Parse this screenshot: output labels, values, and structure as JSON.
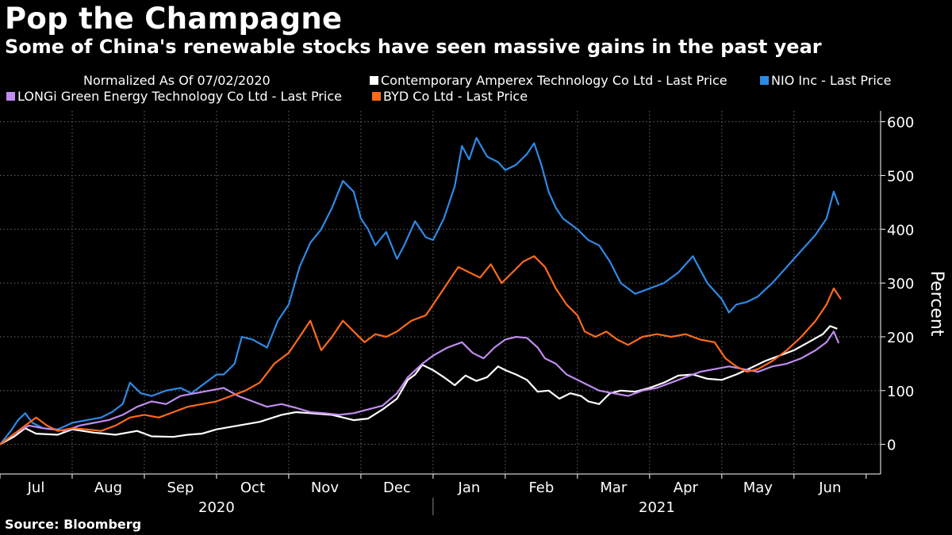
{
  "title": "Pop the Champagne",
  "subtitle": "Some of China's renewable stocks have seen massive gains in the past year",
  "source": "Source: Bloomberg",
  "chart_data": {
    "type": "line",
    "legend_note": "Normalized As Of 07/02/2020",
    "ylabel": "Percent",
    "ylim": [
      -55,
      620
    ],
    "yticks": [
      0,
      100,
      200,
      300,
      400,
      500,
      600
    ],
    "grid": true,
    "months": [
      "Jul",
      "Aug",
      "Sep",
      "Oct",
      "Nov",
      "Dec",
      "Jan",
      "Feb",
      "Mar",
      "Apr",
      "May",
      "Jun"
    ],
    "years": [
      "2020",
      "2021"
    ],
    "x_unit": "months since 07/02/2020",
    "series": [
      {
        "name": "Contemporary Amperex Technology Co Ltd - Last Price",
        "color": "#ffffff",
        "points": [
          [
            0,
            0
          ],
          [
            0.2,
            15
          ],
          [
            0.35,
            30
          ],
          [
            0.5,
            20
          ],
          [
            0.8,
            18
          ],
          [
            1.0,
            28
          ],
          [
            1.3,
            22
          ],
          [
            1.6,
            18
          ],
          [
            1.9,
            25
          ],
          [
            2.1,
            15
          ],
          [
            2.4,
            14
          ],
          [
            2.6,
            18
          ],
          [
            2.8,
            20
          ],
          [
            3.0,
            28
          ],
          [
            3.3,
            35
          ],
          [
            3.6,
            42
          ],
          [
            3.9,
            55
          ],
          [
            4.1,
            60
          ],
          [
            4.3,
            58
          ],
          [
            4.6,
            55
          ],
          [
            4.9,
            45
          ],
          [
            5.1,
            48
          ],
          [
            5.3,
            65
          ],
          [
            5.5,
            85
          ],
          [
            5.65,
            120
          ],
          [
            5.75,
            130
          ],
          [
            5.85,
            148
          ],
          [
            6.0,
            138
          ],
          [
            6.15,
            125
          ],
          [
            6.3,
            110
          ],
          [
            6.45,
            128
          ],
          [
            6.6,
            118
          ],
          [
            6.75,
            125
          ],
          [
            6.9,
            145
          ],
          [
            7.0,
            138
          ],
          [
            7.15,
            130
          ],
          [
            7.3,
            120
          ],
          [
            7.45,
            98
          ],
          [
            7.6,
            100
          ],
          [
            7.75,
            85
          ],
          [
            7.9,
            95
          ],
          [
            8.05,
            90
          ],
          [
            8.15,
            80
          ],
          [
            8.3,
            75
          ],
          [
            8.45,
            95
          ],
          [
            8.6,
            100
          ],
          [
            8.8,
            98
          ],
          [
            9.0,
            105
          ],
          [
            9.2,
            115
          ],
          [
            9.4,
            128
          ],
          [
            9.6,
            130
          ],
          [
            9.8,
            122
          ],
          [
            10.0,
            120
          ],
          [
            10.2,
            130
          ],
          [
            10.4,
            142
          ],
          [
            10.6,
            155
          ],
          [
            10.8,
            165
          ],
          [
            11.0,
            175
          ],
          [
            11.2,
            190
          ],
          [
            11.4,
            205
          ],
          [
            11.5,
            220
          ],
          [
            11.6,
            215
          ]
        ]
      },
      {
        "name": "NIO Inc - Last Price",
        "color": "#2e8ae6",
        "points": [
          [
            0,
            0
          ],
          [
            0.15,
            25
          ],
          [
            0.25,
            45
          ],
          [
            0.35,
            58
          ],
          [
            0.45,
            40
          ],
          [
            0.6,
            30
          ],
          [
            0.8,
            28
          ],
          [
            1.0,
            40
          ],
          [
            1.2,
            45
          ],
          [
            1.4,
            50
          ],
          [
            1.55,
            60
          ],
          [
            1.7,
            75
          ],
          [
            1.8,
            115
          ],
          [
            1.95,
            95
          ],
          [
            2.1,
            90
          ],
          [
            2.3,
            100
          ],
          [
            2.5,
            105
          ],
          [
            2.65,
            95
          ],
          [
            2.8,
            110
          ],
          [
            3.0,
            130
          ],
          [
            3.1,
            130
          ],
          [
            3.25,
            150
          ],
          [
            3.35,
            200
          ],
          [
            3.5,
            195
          ],
          [
            3.7,
            180
          ],
          [
            3.85,
            230
          ],
          [
            4.0,
            260
          ],
          [
            4.15,
            330
          ],
          [
            4.3,
            375
          ],
          [
            4.45,
            400
          ],
          [
            4.6,
            440
          ],
          [
            4.75,
            490
          ],
          [
            4.9,
            470
          ],
          [
            5.0,
            420
          ],
          [
            5.1,
            400
          ],
          [
            5.2,
            370
          ],
          [
            5.35,
            395
          ],
          [
            5.5,
            345
          ],
          [
            5.6,
            370
          ],
          [
            5.75,
            415
          ],
          [
            5.9,
            385
          ],
          [
            6.0,
            380
          ],
          [
            6.15,
            420
          ],
          [
            6.3,
            480
          ],
          [
            6.4,
            555
          ],
          [
            6.5,
            530
          ],
          [
            6.6,
            570
          ],
          [
            6.75,
            535
          ],
          [
            6.9,
            525
          ],
          [
            7.0,
            510
          ],
          [
            7.15,
            520
          ],
          [
            7.3,
            540
          ],
          [
            7.4,
            560
          ],
          [
            7.5,
            520
          ],
          [
            7.6,
            470
          ],
          [
            7.7,
            440
          ],
          [
            7.8,
            420
          ],
          [
            7.9,
            410
          ],
          [
            8.0,
            400
          ],
          [
            8.15,
            380
          ],
          [
            8.3,
            370
          ],
          [
            8.45,
            340
          ],
          [
            8.6,
            300
          ],
          [
            8.8,
            280
          ],
          [
            9.0,
            290
          ],
          [
            9.2,
            300
          ],
          [
            9.4,
            320
          ],
          [
            9.6,
            350
          ],
          [
            9.8,
            300
          ],
          [
            10.0,
            270
          ],
          [
            10.1,
            245
          ],
          [
            10.2,
            260
          ],
          [
            10.35,
            265
          ],
          [
            10.5,
            275
          ],
          [
            10.7,
            300
          ],
          [
            10.9,
            330
          ],
          [
            11.1,
            360
          ],
          [
            11.3,
            390
          ],
          [
            11.45,
            420
          ],
          [
            11.55,
            470
          ],
          [
            11.62,
            445
          ]
        ]
      },
      {
        "name": "LONGi Green Energy Technology Co Ltd - Last Price",
        "color": "#c08cf0",
        "points": [
          [
            0,
            0
          ],
          [
            0.2,
            20
          ],
          [
            0.4,
            35
          ],
          [
            0.6,
            30
          ],
          [
            0.9,
            25
          ],
          [
            1.1,
            35
          ],
          [
            1.3,
            40
          ],
          [
            1.5,
            45
          ],
          [
            1.7,
            55
          ],
          [
            1.9,
            70
          ],
          [
            2.1,
            80
          ],
          [
            2.3,
            75
          ],
          [
            2.5,
            90
          ],
          [
            2.7,
            95
          ],
          [
            2.9,
            100
          ],
          [
            3.1,
            105
          ],
          [
            3.3,
            90
          ],
          [
            3.5,
            80
          ],
          [
            3.7,
            70
          ],
          [
            3.9,
            75
          ],
          [
            4.1,
            68
          ],
          [
            4.3,
            60
          ],
          [
            4.5,
            58
          ],
          [
            4.7,
            55
          ],
          [
            4.9,
            58
          ],
          [
            5.1,
            65
          ],
          [
            5.3,
            72
          ],
          [
            5.5,
            95
          ],
          [
            5.65,
            125
          ],
          [
            5.85,
            150
          ],
          [
            6.0,
            165
          ],
          [
            6.2,
            180
          ],
          [
            6.4,
            190
          ],
          [
            6.55,
            170
          ],
          [
            6.7,
            160
          ],
          [
            6.85,
            180
          ],
          [
            7.0,
            195
          ],
          [
            7.15,
            200
          ],
          [
            7.3,
            198
          ],
          [
            7.45,
            180
          ],
          [
            7.55,
            160
          ],
          [
            7.7,
            150
          ],
          [
            7.85,
            130
          ],
          [
            8.0,
            120
          ],
          [
            8.15,
            110
          ],
          [
            8.3,
            100
          ],
          [
            8.5,
            95
          ],
          [
            8.7,
            90
          ],
          [
            8.9,
            100
          ],
          [
            9.1,
            105
          ],
          [
            9.3,
            115
          ],
          [
            9.5,
            125
          ],
          [
            9.7,
            135
          ],
          [
            9.9,
            140
          ],
          [
            10.1,
            145
          ],
          [
            10.3,
            140
          ],
          [
            10.5,
            135
          ],
          [
            10.7,
            145
          ],
          [
            10.9,
            150
          ],
          [
            11.1,
            160
          ],
          [
            11.3,
            175
          ],
          [
            11.45,
            190
          ],
          [
            11.55,
            210
          ],
          [
            11.62,
            188
          ]
        ]
      },
      {
        "name": "BYD Co Ltd - Last Price",
        "color": "#ff6a1a",
        "points": [
          [
            0,
            0
          ],
          [
            0.2,
            20
          ],
          [
            0.35,
            35
          ],
          [
            0.5,
            50
          ],
          [
            0.65,
            35
          ],
          [
            0.8,
            25
          ],
          [
            1.0,
            30
          ],
          [
            1.2,
            28
          ],
          [
            1.4,
            25
          ],
          [
            1.6,
            35
          ],
          [
            1.8,
            50
          ],
          [
            2.0,
            55
          ],
          [
            2.2,
            50
          ],
          [
            2.4,
            60
          ],
          [
            2.6,
            70
          ],
          [
            2.8,
            75
          ],
          [
            3.0,
            80
          ],
          [
            3.2,
            90
          ],
          [
            3.4,
            100
          ],
          [
            3.6,
            115
          ],
          [
            3.8,
            150
          ],
          [
            4.0,
            170
          ],
          [
            4.15,
            200
          ],
          [
            4.3,
            230
          ],
          [
            4.45,
            175
          ],
          [
            4.6,
            200
          ],
          [
            4.75,
            230
          ],
          [
            4.9,
            210
          ],
          [
            5.05,
            190
          ],
          [
            5.2,
            205
          ],
          [
            5.35,
            200
          ],
          [
            5.5,
            210
          ],
          [
            5.7,
            230
          ],
          [
            5.9,
            240
          ],
          [
            6.05,
            270
          ],
          [
            6.2,
            300
          ],
          [
            6.35,
            330
          ],
          [
            6.5,
            320
          ],
          [
            6.65,
            310
          ],
          [
            6.8,
            335
          ],
          [
            6.95,
            300
          ],
          [
            7.1,
            320
          ],
          [
            7.25,
            340
          ],
          [
            7.4,
            350
          ],
          [
            7.55,
            330
          ],
          [
            7.7,
            290
          ],
          [
            7.85,
            260
          ],
          [
            8.0,
            240
          ],
          [
            8.1,
            210
          ],
          [
            8.25,
            200
          ],
          [
            8.4,
            210
          ],
          [
            8.55,
            195
          ],
          [
            8.7,
            185
          ],
          [
            8.9,
            200
          ],
          [
            9.1,
            205
          ],
          [
            9.3,
            200
          ],
          [
            9.5,
            205
          ],
          [
            9.7,
            195
          ],
          [
            9.9,
            190
          ],
          [
            10.05,
            160
          ],
          [
            10.2,
            145
          ],
          [
            10.35,
            135
          ],
          [
            10.5,
            140
          ],
          [
            10.7,
            155
          ],
          [
            10.9,
            175
          ],
          [
            11.1,
            200
          ],
          [
            11.3,
            230
          ],
          [
            11.45,
            260
          ],
          [
            11.55,
            290
          ],
          [
            11.65,
            270
          ]
        ]
      }
    ]
  }
}
